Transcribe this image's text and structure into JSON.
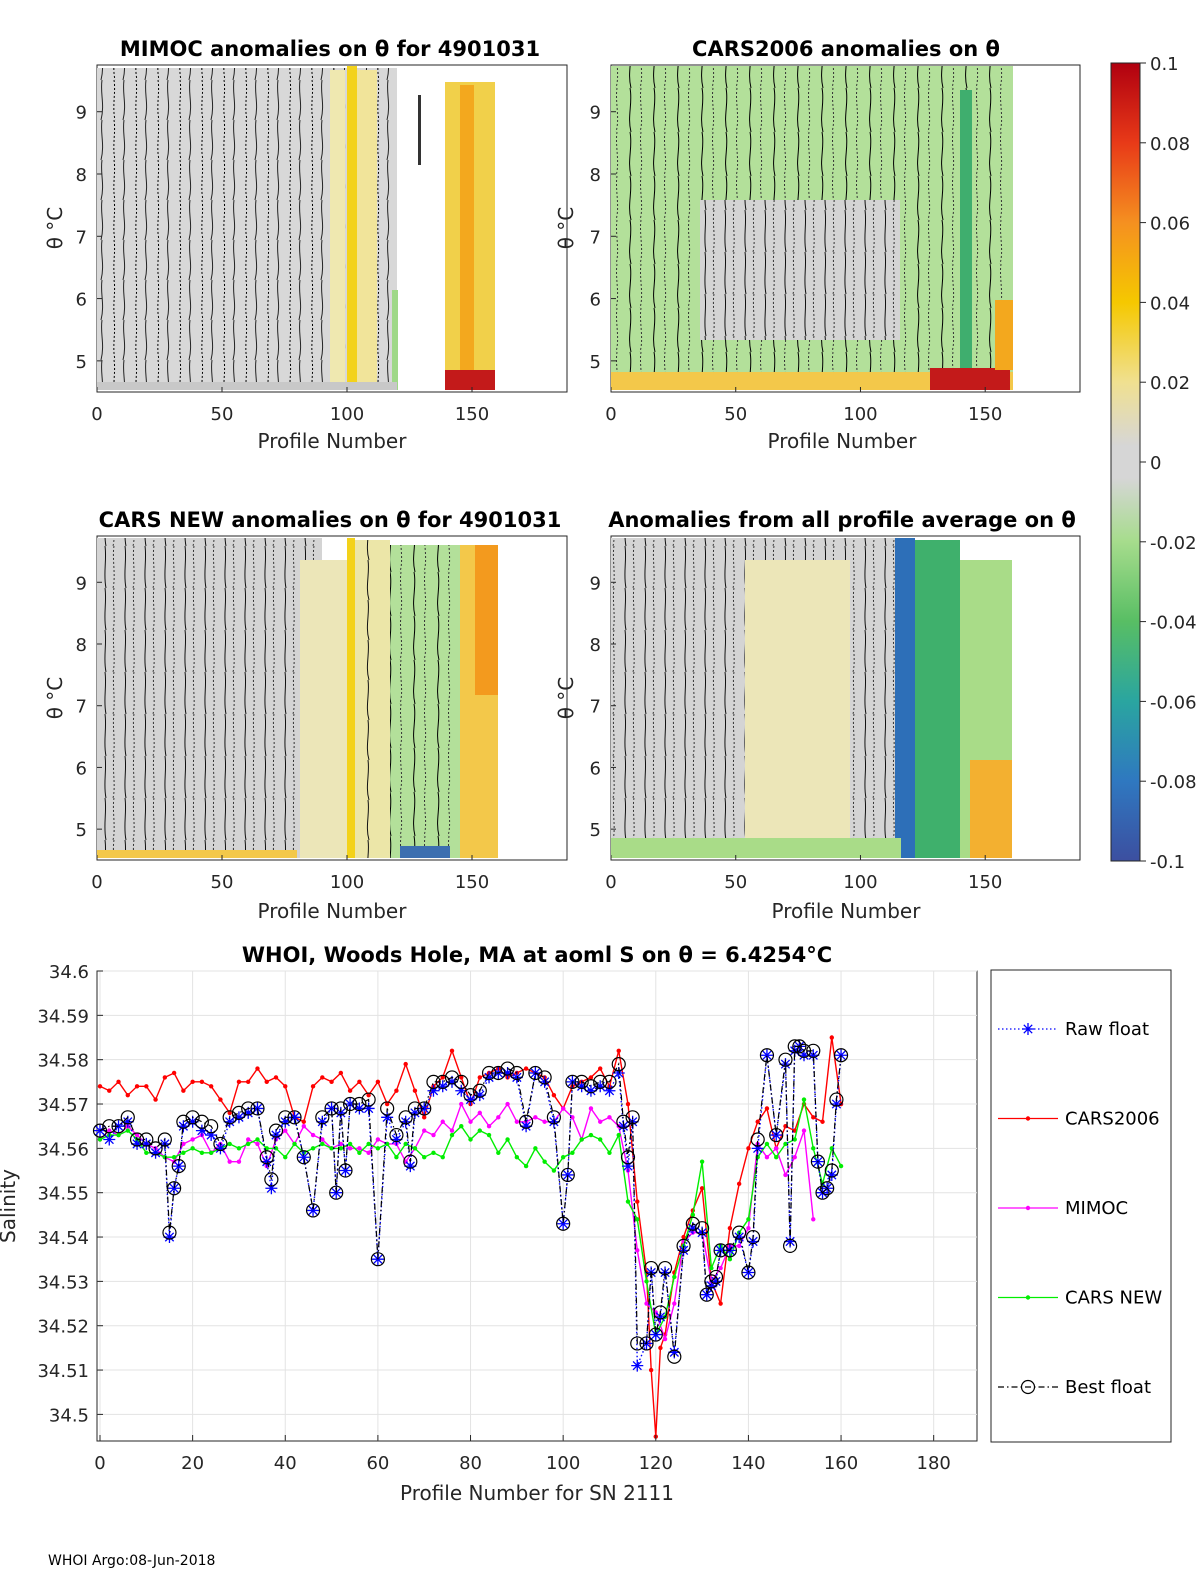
{
  "panels": [
    {
      "title": "MIMOC anomalies on θ  for 4901031",
      "xlabel": "Profile Number",
      "ylabel": "θ °C",
      "xticks": [
        "0",
        "50",
        "100",
        "150"
      ],
      "yticks": [
        "5",
        "6",
        "7",
        "8",
        "9"
      ],
      "style": "mimoc"
    },
    {
      "title": "CARS2006 anomalies on θ",
      "xlabel": "Profile Number",
      "ylabel": "θ °C",
      "xticks": [
        "0",
        "50",
        "100",
        "150"
      ],
      "yticks": [
        "5",
        "6",
        "7",
        "8",
        "9"
      ],
      "style": "cars2006"
    },
    {
      "title": "CARS NEW anomalies on θ for 4901031",
      "xlabel": "Profile Number",
      "ylabel": "θ °C",
      "xticks": [
        "0",
        "50",
        "100",
        "150"
      ],
      "yticks": [
        "5",
        "6",
        "7",
        "8",
        "9"
      ],
      "style": "carsnew"
    },
    {
      "title": "Anomalies from all profile average on θ",
      "xlabel": "Profile Number",
      "ylabel": "θ °C",
      "xticks": [
        "0",
        "50",
        "100",
        "150"
      ],
      "yticks": [
        "5",
        "6",
        "7",
        "8",
        "9"
      ],
      "style": "allavg"
    }
  ],
  "colorbar": {
    "ticks": [
      "0.1",
      "0.08",
      "0.06",
      "0.04",
      "0.02",
      "0",
      "-0.02",
      "-0.04",
      "-0.06",
      "-0.08",
      "-0.1"
    ]
  },
  "colors": {
    "raw": "#0000ff",
    "cars2006": "#ff0000",
    "mimoc": "#ff00ff",
    "carsnew": "#00ee00",
    "best": "#000000",
    "gray": "#d6d6d6",
    "green": "#a9dc88",
    "yellow": "#f3e07a",
    "orange": "#f0b73c",
    "red": "#c0101a",
    "teal": "#3fb06c",
    "blue": "#2d6fb8"
  },
  "chart_data": {
    "type": "line",
    "title": "WHOI, Woods Hole, MA at aoml S on θ = 6.4254°C",
    "xlabel": "Profile Number for SN 2111",
    "ylabel": "Salinity",
    "xlim": [
      0,
      190
    ],
    "ylim": [
      34.494,
      34.6
    ],
    "xticks": [
      0,
      20,
      40,
      60,
      80,
      100,
      120,
      140,
      160,
      180
    ],
    "yticks": [
      34.5,
      34.51,
      34.52,
      34.53,
      34.54,
      34.55,
      34.56,
      34.57,
      34.58,
      34.59,
      34.6
    ],
    "legend_position": "right",
    "series": [
      {
        "name": "Raw float",
        "key": "raw",
        "marker": "star",
        "line": "dotted",
        "x": [
          0,
          2,
          4,
          6,
          8,
          10,
          12,
          14,
          15,
          16,
          17,
          18,
          20,
          22,
          24,
          26,
          28,
          30,
          32,
          34,
          36,
          37,
          38,
          40,
          42,
          44,
          46,
          48,
          50,
          51,
          52,
          53,
          54,
          56,
          58,
          60,
          62,
          64,
          66,
          67,
          68,
          70,
          72,
          74,
          76,
          78,
          80,
          82,
          84,
          86,
          88,
          90,
          92,
          94,
          96,
          98,
          100,
          101,
          102,
          104,
          106,
          108,
          110,
          112,
          113,
          114,
          115,
          116,
          118,
          119,
          120,
          121,
          122,
          124,
          126,
          128,
          130,
          131,
          132,
          133,
          134,
          136,
          138,
          140,
          141,
          142,
          144,
          146,
          148,
          149,
          150,
          151,
          152,
          154,
          155,
          156,
          157,
          158,
          159,
          160
        ],
        "y": [
          34.564,
          34.562,
          34.565,
          34.566,
          34.561,
          34.561,
          34.559,
          34.561,
          34.54,
          34.551,
          34.556,
          34.565,
          34.566,
          34.564,
          34.563,
          34.56,
          34.566,
          34.567,
          34.568,
          34.569,
          34.557,
          34.551,
          34.563,
          34.566,
          34.567,
          34.558,
          34.546,
          34.566,
          34.569,
          34.55,
          34.568,
          34.555,
          34.57,
          34.569,
          34.569,
          34.535,
          34.567,
          34.562,
          34.566,
          34.556,
          34.568,
          34.569,
          34.573,
          34.574,
          34.575,
          34.573,
          34.571,
          34.572,
          34.576,
          34.577,
          34.577,
          34.576,
          34.565,
          34.577,
          34.575,
          34.566,
          34.543,
          34.554,
          34.575,
          34.574,
          34.573,
          34.574,
          34.573,
          34.577,
          34.565,
          34.556,
          34.566,
          34.511,
          34.516,
          34.532,
          34.518,
          34.522,
          34.532,
          34.514,
          34.537,
          34.542,
          34.541,
          34.527,
          34.529,
          34.53,
          34.537,
          34.537,
          34.54,
          34.532,
          34.539,
          34.56,
          34.581,
          34.563,
          34.579,
          34.539,
          34.582,
          34.583,
          34.581,
          34.581,
          34.557,
          34.55,
          34.551,
          34.554,
          34.57,
          34.581
        ]
      },
      {
        "name": "CARS2006",
        "key": "cars2006",
        "marker": "dot",
        "line": "solid",
        "x": [
          0,
          2,
          4,
          6,
          8,
          10,
          12,
          14,
          16,
          18,
          20,
          22,
          24,
          26,
          28,
          30,
          32,
          34,
          36,
          38,
          40,
          42,
          44,
          46,
          48,
          50,
          52,
          54,
          56,
          58,
          60,
          62,
          64,
          66,
          68,
          70,
          72,
          74,
          76,
          78,
          80,
          82,
          84,
          86,
          88,
          90,
          92,
          94,
          96,
          98,
          100,
          102,
          104,
          106,
          108,
          110,
          112,
          114,
          116,
          118,
          119,
          120,
          121,
          122,
          124,
          126,
          128,
          130,
          132,
          134,
          136,
          138,
          140,
          142,
          144,
          146,
          148,
          150,
          152,
          154,
          156,
          158,
          160
        ],
        "y": [
          34.574,
          34.573,
          34.575,
          34.572,
          34.574,
          34.574,
          34.571,
          34.576,
          34.577,
          34.573,
          34.575,
          34.575,
          34.574,
          34.571,
          34.568,
          34.575,
          34.575,
          34.578,
          34.575,
          34.576,
          34.574,
          34.567,
          34.566,
          34.574,
          34.576,
          34.575,
          34.577,
          34.573,
          34.575,
          34.572,
          34.575,
          34.57,
          34.573,
          34.579,
          34.573,
          34.567,
          34.574,
          34.576,
          34.582,
          34.576,
          34.57,
          34.576,
          34.577,
          34.578,
          34.576,
          34.577,
          34.578,
          34.577,
          34.576,
          34.572,
          34.569,
          34.574,
          34.575,
          34.576,
          34.578,
          34.574,
          34.582,
          34.57,
          34.548,
          34.532,
          34.51,
          34.495,
          34.515,
          34.518,
          34.532,
          34.54,
          34.546,
          34.551,
          34.53,
          34.525,
          34.542,
          34.552,
          34.56,
          34.566,
          34.569,
          34.56,
          34.565,
          34.564,
          34.57,
          34.567,
          34.566,
          34.585,
          34.57
        ]
      },
      {
        "name": "MIMOC",
        "key": "mimoc",
        "marker": "dot",
        "line": "solid",
        "x": [
          0,
          2,
          4,
          6,
          8,
          10,
          12,
          14,
          16,
          18,
          20,
          22,
          24,
          26,
          28,
          30,
          32,
          34,
          36,
          38,
          40,
          42,
          44,
          46,
          48,
          50,
          52,
          54,
          56,
          58,
          60,
          62,
          64,
          66,
          68,
          70,
          72,
          74,
          76,
          78,
          80,
          82,
          84,
          86,
          88,
          90,
          92,
          94,
          96,
          98,
          100,
          102,
          104,
          106,
          108,
          110,
          112,
          114,
          116,
          118,
          120,
          122,
          124,
          126,
          128,
          130,
          132,
          134,
          136,
          138,
          140,
          142,
          144,
          146,
          148,
          150,
          152,
          154
        ],
        "y": [
          34.562,
          34.564,
          34.563,
          34.565,
          34.563,
          34.561,
          34.56,
          34.558,
          34.557,
          34.561,
          34.562,
          34.563,
          34.559,
          34.561,
          34.557,
          34.557,
          34.562,
          34.561,
          34.556,
          34.562,
          34.564,
          34.561,
          34.565,
          34.563,
          34.562,
          34.56,
          34.561,
          34.56,
          34.56,
          34.559,
          34.562,
          34.561,
          34.561,
          34.557,
          34.56,
          34.564,
          34.563,
          34.566,
          34.564,
          34.57,
          34.566,
          34.568,
          34.565,
          34.567,
          34.57,
          34.566,
          34.566,
          34.567,
          34.566,
          34.566,
          34.569,
          34.567,
          34.562,
          34.569,
          34.566,
          34.567,
          34.565,
          34.555,
          34.537,
          34.525,
          34.523,
          34.517,
          34.525,
          34.539,
          34.541,
          34.541,
          34.53,
          34.533,
          34.538,
          34.538,
          34.542,
          34.561,
          34.558,
          34.56,
          34.554,
          34.558,
          34.564,
          34.544
        ]
      },
      {
        "name": "CARS NEW",
        "key": "carsnew",
        "marker": "dot",
        "line": "solid",
        "x": [
          0,
          2,
          4,
          6,
          8,
          10,
          12,
          14,
          16,
          18,
          20,
          22,
          24,
          26,
          28,
          30,
          32,
          34,
          36,
          38,
          40,
          42,
          44,
          46,
          48,
          50,
          52,
          54,
          56,
          58,
          60,
          62,
          64,
          66,
          68,
          70,
          72,
          74,
          76,
          78,
          80,
          82,
          84,
          86,
          88,
          90,
          92,
          94,
          96,
          98,
          100,
          102,
          104,
          106,
          108,
          110,
          112,
          114,
          116,
          118,
          120,
          122,
          124,
          126,
          128,
          130,
          132,
          134,
          136,
          138,
          140,
          142,
          144,
          146,
          148,
          150,
          152,
          154,
          156,
          158,
          160
        ],
        "y": [
          34.562,
          34.563,
          34.563,
          34.564,
          34.562,
          34.559,
          34.559,
          34.558,
          34.558,
          34.559,
          34.56,
          34.559,
          34.559,
          34.56,
          34.561,
          34.56,
          34.561,
          34.562,
          34.56,
          34.56,
          34.558,
          34.561,
          34.559,
          34.56,
          34.561,
          34.56,
          34.56,
          34.561,
          34.559,
          34.561,
          34.56,
          34.561,
          34.558,
          34.561,
          34.56,
          34.558,
          34.559,
          34.558,
          34.563,
          34.565,
          34.562,
          34.564,
          34.563,
          34.559,
          34.562,
          34.558,
          34.556,
          34.56,
          34.557,
          34.555,
          34.558,
          34.559,
          34.562,
          34.563,
          34.562,
          34.559,
          34.563,
          34.548,
          34.544,
          34.53,
          34.518,
          34.522,
          34.531,
          34.538,
          34.545,
          34.557,
          34.533,
          34.538,
          34.535,
          34.541,
          34.544,
          34.558,
          34.561,
          34.558,
          34.561,
          34.562,
          34.571,
          34.56,
          34.552,
          34.56,
          34.556
        ]
      },
      {
        "name": "Best float",
        "key": "best",
        "marker": "circle",
        "line": "dashdot",
        "x": [
          0,
          2,
          4,
          6,
          8,
          10,
          12,
          14,
          15,
          16,
          17,
          18,
          20,
          22,
          24,
          26,
          28,
          30,
          32,
          34,
          36,
          37,
          38,
          40,
          42,
          44,
          46,
          48,
          50,
          51,
          52,
          53,
          54,
          56,
          58,
          60,
          62,
          64,
          66,
          67,
          68,
          70,
          72,
          74,
          76,
          78,
          80,
          82,
          84,
          86,
          88,
          90,
          92,
          94,
          96,
          98,
          100,
          101,
          102,
          104,
          106,
          108,
          110,
          112,
          113,
          114,
          115,
          116,
          118,
          119,
          120,
          121,
          122,
          124,
          126,
          128,
          130,
          131,
          132,
          133,
          134,
          136,
          138,
          140,
          141,
          142,
          144,
          146,
          148,
          149,
          150,
          151,
          152,
          154,
          155,
          156,
          157,
          158,
          159,
          160
        ],
        "y": [
          34.564,
          34.565,
          34.565,
          34.567,
          34.562,
          34.562,
          34.56,
          34.562,
          34.541,
          34.551,
          34.556,
          34.566,
          34.567,
          34.566,
          34.565,
          34.561,
          34.567,
          34.568,
          34.569,
          34.569,
          34.558,
          34.553,
          34.564,
          34.567,
          34.567,
          34.558,
          34.546,
          34.567,
          34.569,
          34.55,
          34.569,
          34.555,
          34.57,
          34.57,
          34.571,
          34.535,
          34.569,
          34.563,
          34.567,
          34.557,
          34.569,
          34.569,
          34.575,
          34.575,
          34.576,
          34.575,
          34.572,
          34.573,
          34.577,
          34.577,
          34.578,
          34.577,
          34.566,
          34.577,
          34.576,
          34.567,
          34.543,
          34.554,
          34.575,
          34.575,
          34.574,
          34.575,
          34.575,
          34.579,
          34.566,
          34.558,
          34.567,
          34.516,
          34.516,
          34.533,
          34.518,
          34.523,
          34.533,
          34.513,
          34.538,
          34.543,
          34.542,
          34.527,
          34.53,
          34.531,
          34.537,
          34.537,
          34.541,
          34.532,
          34.54,
          34.562,
          34.581,
          34.563,
          34.58,
          34.538,
          34.583,
          34.583,
          34.582,
          34.582,
          34.557,
          34.55,
          34.551,
          34.555,
          34.571,
          34.581
        ]
      }
    ]
  },
  "footer": "WHOI Argo:08-Jun-2018"
}
